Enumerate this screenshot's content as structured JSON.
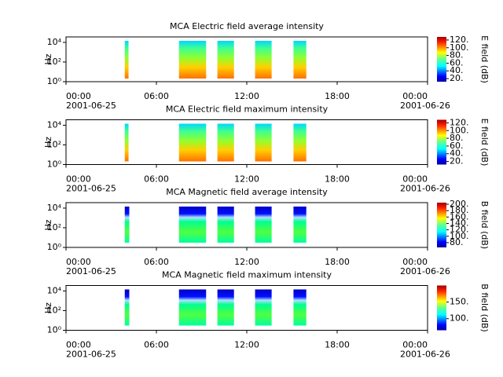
{
  "chart_data": [
    {
      "type": "spectrogram",
      "title": "MCA  Electric field average intensity",
      "ylabel": "Hz",
      "log_y": true,
      "ylim": [
        1,
        36000
      ],
      "yticks": [
        {
          "value": 1,
          "label": "10⁰"
        },
        {
          "value": 100,
          "label": "10²"
        },
        {
          "value": 10000,
          "label": "10⁴"
        }
      ],
      "xlim": [
        0,
        24
      ],
      "xticks": [
        {
          "value": 0,
          "label": "00:00"
        },
        {
          "value": 6,
          "label": "06:00"
        },
        {
          "value": 12,
          "label": "12:00"
        },
        {
          "value": 18,
          "label": "18:00"
        },
        {
          "value": 24,
          "label": "00:00"
        }
      ],
      "x_dates": [
        {
          "value": 0,
          "label": "2001-06-25"
        },
        {
          "value": 24,
          "label": "2001-06-26"
        }
      ],
      "intervals": [
        [
          3.9,
          4.15
        ],
        [
          7.5,
          9.3
        ],
        [
          10.05,
          11.15
        ],
        [
          12.55,
          13.65
        ],
        [
          15.1,
          15.95
        ]
      ],
      "colorbar": {
        "label": "E field (dB)",
        "lim": [
          12,
          128
        ],
        "ticks": [
          {
            "value": 20,
            "label": "20."
          },
          {
            "value": 40,
            "label": "40."
          },
          {
            "value": 60,
            "label": "60."
          },
          {
            "value": 80,
            "label": "80."
          },
          {
            "value": 100,
            "label": "100."
          },
          {
            "value": 120,
            "label": "120."
          }
        ]
      }
    },
    {
      "type": "spectrogram",
      "title": "MCA  Electric field maximum intensity",
      "ylabel": "Hz",
      "log_y": true,
      "ylim": [
        1,
        36000
      ],
      "yticks": [
        {
          "value": 1,
          "label": "10⁰"
        },
        {
          "value": 100,
          "label": "10²"
        },
        {
          "value": 10000,
          "label": "10⁴"
        }
      ],
      "xlim": [
        0,
        24
      ],
      "xticks": [
        {
          "value": 0,
          "label": "00:00"
        },
        {
          "value": 6,
          "label": "06:00"
        },
        {
          "value": 12,
          "label": "12:00"
        },
        {
          "value": 18,
          "label": "18:00"
        },
        {
          "value": 24,
          "label": "00:00"
        }
      ],
      "x_dates": [
        {
          "value": 0,
          "label": "2001-06-25"
        },
        {
          "value": 24,
          "label": "2001-06-26"
        }
      ],
      "intervals": [
        [
          3.9,
          4.15
        ],
        [
          7.5,
          9.3
        ],
        [
          10.05,
          11.15
        ],
        [
          12.55,
          13.65
        ],
        [
          15.1,
          15.95
        ]
      ],
      "colorbar": {
        "label": "E field (dB)",
        "lim": [
          12,
          128
        ],
        "ticks": [
          {
            "value": 20,
            "label": "20."
          },
          {
            "value": 40,
            "label": "40."
          },
          {
            "value": 60,
            "label": "60."
          },
          {
            "value": 80,
            "label": "80."
          },
          {
            "value": 100,
            "label": "100."
          },
          {
            "value": 120,
            "label": "120."
          }
        ]
      }
    },
    {
      "type": "spectrogram",
      "title": "MCA  Magnetic field average intensity",
      "ylabel": "Hz",
      "log_y": true,
      "ylim": [
        1,
        36000
      ],
      "yticks": [
        {
          "value": 1,
          "label": "10⁰"
        },
        {
          "value": 100,
          "label": "10²"
        },
        {
          "value": 10000,
          "label": "10⁴"
        }
      ],
      "xlim": [
        0,
        24
      ],
      "xticks": [
        {
          "value": 0,
          "label": "00:00"
        },
        {
          "value": 6,
          "label": "06:00"
        },
        {
          "value": 12,
          "label": "12:00"
        },
        {
          "value": 18,
          "label": "18:00"
        },
        {
          "value": 24,
          "label": "00:00"
        }
      ],
      "x_dates": [
        {
          "value": 0,
          "label": "2001-06-25"
        },
        {
          "value": 24,
          "label": "2001-06-26"
        }
      ],
      "intervals": [
        [
          3.9,
          4.2
        ],
        [
          7.5,
          9.3
        ],
        [
          10.05,
          11.15
        ],
        [
          12.55,
          13.65
        ],
        [
          15.1,
          15.95
        ]
      ],
      "colorbar": {
        "label": "B field (dB)",
        "lim": [
          65,
          205
        ],
        "ticks": [
          {
            "value": 80,
            "label": "80."
          },
          {
            "value": 100,
            "label": "100."
          },
          {
            "value": 120,
            "label": "120."
          },
          {
            "value": 140,
            "label": "140."
          },
          {
            "value": 160,
            "label": "160."
          },
          {
            "value": 180,
            "label": "180."
          },
          {
            "value": 200,
            "label": "200."
          }
        ]
      }
    },
    {
      "type": "spectrogram",
      "title": "MCA  Magnetic field maximum intensity",
      "ylabel": "Hz",
      "log_y": true,
      "ylim": [
        1,
        36000
      ],
      "yticks": [
        {
          "value": 1,
          "label": "10⁰"
        },
        {
          "value": 100,
          "label": "10²"
        },
        {
          "value": 10000,
          "label": "10⁴"
        }
      ],
      "xlim": [
        0,
        24
      ],
      "xticks": [
        {
          "value": 0,
          "label": "00:00"
        },
        {
          "value": 6,
          "label": "06:00"
        },
        {
          "value": 12,
          "label": "12:00"
        },
        {
          "value": 18,
          "label": "18:00"
        },
        {
          "value": 24,
          "label": "00:00"
        }
      ],
      "x_dates": [
        {
          "value": 0,
          "label": "2001-06-25"
        },
        {
          "value": 24,
          "label": "2001-06-26"
        }
      ],
      "intervals": [
        [
          3.9,
          4.2
        ],
        [
          7.5,
          9.3
        ],
        [
          10.05,
          11.15
        ],
        [
          12.55,
          13.65
        ],
        [
          15.1,
          15.95
        ]
      ],
      "colorbar": {
        "label": "B field (dB)",
        "lim": [
          65,
          200
        ],
        "ticks": [
          {
            "value": 100,
            "label": "100."
          },
          {
            "value": 150,
            "label": "150."
          }
        ]
      }
    }
  ]
}
